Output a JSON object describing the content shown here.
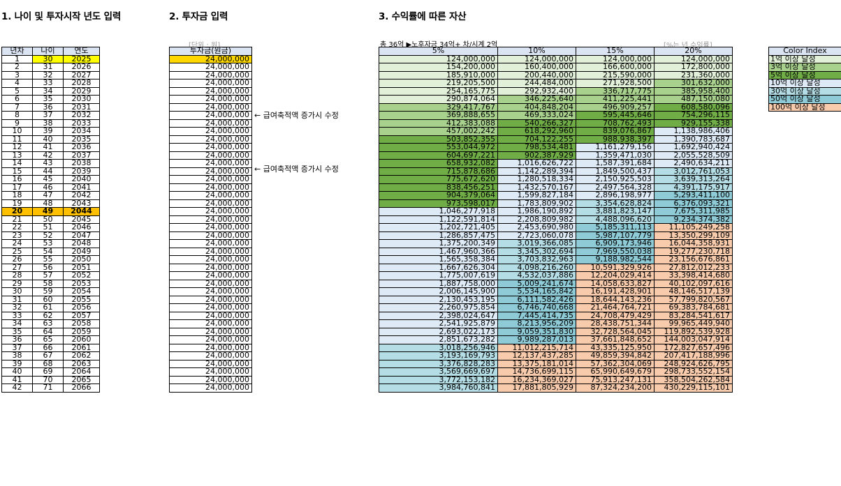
{
  "headings": {
    "section1": "1. 나이 및 투자시작 년도 입력",
    "section2": "2. 투자금 입력",
    "section3": "3. 수익률에 따른 자산"
  },
  "notes": {
    "unit": "[단위 : 원]",
    "summary": "총 36억 ▶노후자금 34억+ 차/시계 2억",
    "rate_note": "[%는 년 수익률]",
    "annotation1": "← 급여축적액 증가시 수정",
    "annotation2": "← 급여축적액 증가시 수정"
  },
  "age_table": {
    "headers": [
      "년차",
      "나이",
      "연도"
    ],
    "start_age": "30",
    "start_year": "2025"
  },
  "invest_table": {
    "header": "투자금(원금)",
    "amount": "24,000,000"
  },
  "returns_table": {
    "headers": [
      "5%",
      "10%",
      "15%",
      "20%"
    ],
    "rows": [
      [
        "124,000,000",
        "124,000,000",
        "124,000,000",
        "124,000,000"
      ],
      [
        "154,200,000",
        "160,400,000",
        "166,600,000",
        "172,800,000"
      ],
      [
        "185,910,000",
        "200,440,000",
        "215,590,000",
        "231,360,000"
      ],
      [
        "219,205,500",
        "244,484,000",
        "271,928,500",
        "301,632,000"
      ],
      [
        "254,165,775",
        "292,932,400",
        "336,717,775",
        "385,958,400"
      ],
      [
        "290,874,064",
        "346,225,640",
        "411,225,441",
        "487,150,080"
      ],
      [
        "329,417,767",
        "404,848,204",
        "496,909,257",
        "608,580,096"
      ],
      [
        "369,888,655",
        "469,333,024",
        "595,445,646",
        "754,296,115"
      ],
      [
        "412,383,088",
        "540,266,327",
        "708,762,493",
        "929,155,338"
      ],
      [
        "457,002,242",
        "618,292,960",
        "839,076,867",
        "1,138,986,406"
      ],
      [
        "503,852,355",
        "704,122,255",
        "988,938,397",
        "1,390,783,687"
      ],
      [
        "553,044,972",
        "798,534,481",
        "1,161,279,156",
        "1,692,940,424"
      ],
      [
        "604,697,221",
        "902,387,929",
        "1,359,471,030",
        "2,055,528,509"
      ],
      [
        "658,932,082",
        "1,016,626,722",
        "1,587,391,684",
        "2,490,634,211"
      ],
      [
        "715,878,686",
        "1,142,289,394",
        "1,849,500,437",
        "3,012,761,053"
      ],
      [
        "775,672,620",
        "1,280,518,334",
        "2,150,925,503",
        "3,639,313,264"
      ],
      [
        "838,456,251",
        "1,432,570,167",
        "2,497,564,328",
        "4,391,175,917"
      ],
      [
        "904,379,064",
        "1,599,827,184",
        "2,896,198,977",
        "5,293,411,100"
      ],
      [
        "973,598,017",
        "1,783,809,902",
        "3,354,628,824",
        "6,376,093,321"
      ],
      [
        "1,046,277,918",
        "1,986,190,892",
        "3,881,823,147",
        "7,675,311,985"
      ],
      [
        "1,122,591,814",
        "2,208,809,982",
        "4,488,096,620",
        "9,234,374,382"
      ],
      [
        "1,202,721,405",
        "2,453,690,980",
        "5,185,311,113",
        "11,105,249,258"
      ],
      [
        "1,286,857,475",
        "2,723,060,078",
        "5,987,107,779",
        "13,350,299,109"
      ],
      [
        "1,375,200,349",
        "3,019,366,085",
        "6,909,173,946",
        "16,044,358,931"
      ],
      [
        "1,467,960,366",
        "3,345,302,694",
        "7,969,550,038",
        "19,277,230,718"
      ],
      [
        "1,565,358,384",
        "3,703,832,963",
        "9,188,982,544",
        "23,156,676,861"
      ],
      [
        "1,667,626,304",
        "4,098,216,260",
        "10,591,329,926",
        "27,812,012,233"
      ],
      [
        "1,775,007,619",
        "4,532,037,886",
        "12,204,029,414",
        "33,398,414,680"
      ],
      [
        "1,887,758,000",
        "5,009,241,674",
        "14,058,633,827",
        "40,102,097,616"
      ],
      [
        "2,006,145,900",
        "5,534,165,842",
        "16,191,428,901",
        "48,146,517,139"
      ],
      [
        "2,130,453,195",
        "6,111,582,426",
        "18,644,143,236",
        "57,799,820,567"
      ],
      [
        "2,260,975,854",
        "6,746,740,668",
        "21,464,764,721",
        "69,383,784,681"
      ],
      [
        "2,398,024,647",
        "7,445,414,735",
        "24,708,479,429",
        "83,284,541,617"
      ],
      [
        "2,541,925,879",
        "8,213,956,209",
        "28,438,751,344",
        "99,965,449,940"
      ],
      [
        "2,693,022,173",
        "9,059,351,830",
        "32,728,564,045",
        "119,892,539,928"
      ],
      [
        "2,851,673,282",
        "9,989,287,013",
        "37,661,848,652",
        "144,003,047,914"
      ],
      [
        "3,018,256,946",
        "11,012,215,714",
        "43,335,125,950",
        "172,827,657,496"
      ],
      [
        "3,193,169,793",
        "12,137,437,285",
        "49,859,394,842",
        "207,417,188,996"
      ],
      [
        "3,376,828,283",
        "13,375,181,014",
        "57,362,304,069",
        "248,924,626,795"
      ],
      [
        "3,569,669,697",
        "14,736,699,115",
        "65,990,649,679",
        "298,733,552,154"
      ],
      [
        "3,772,153,182",
        "16,234,369,027",
        "75,913,247,131",
        "358,504,262,584"
      ],
      [
        "3,984,760,841",
        "17,881,805,929",
        "87,324,234,200",
        "430,229,115,101"
      ]
    ]
  },
  "legend": {
    "title": "Color Index",
    "items": [
      {
        "label": "1억 이상 달성",
        "color": "#e2f0d9"
      },
      {
        "label": "3억 이상 달성",
        "color": "#a9d18e"
      },
      {
        "label": "5억 이상 달성",
        "color": "#70ad47"
      },
      {
        "label": "10억 이상 달성",
        "color": "#deebf7"
      },
      {
        "label": "30억 이상 달성",
        "color": "#b4dde5"
      },
      {
        "label": "50억 이상 달성",
        "color": "#8ecbd6"
      },
      {
        "label": "100억 이상 달성",
        "color": "#f8cbad"
      }
    ]
  }
}
